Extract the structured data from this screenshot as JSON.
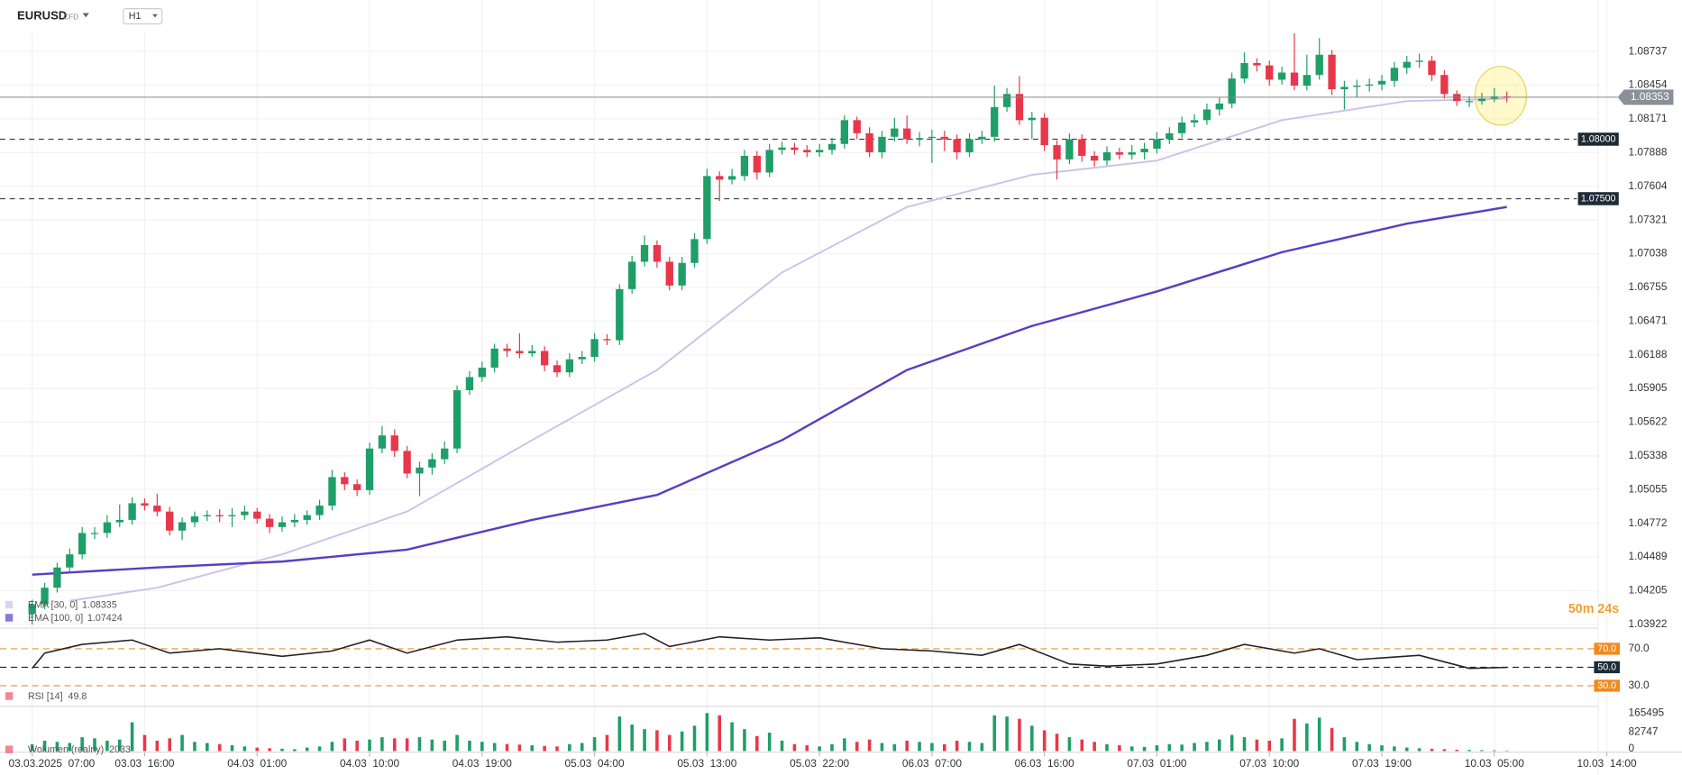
{
  "header": {
    "symbol": "EURUSD",
    "badge": "CFD",
    "timeframe": "H1"
  },
  "chart_data": [
    {
      "type": "candlestick",
      "up_color": "#1f9e68",
      "down_color": "#e8374a",
      "ylim": [
        1.039,
        1.0917
      ],
      "yticks": [
        1.08737,
        1.08454,
        1.08171,
        1.07888,
        1.07604,
        1.07321,
        1.07038,
        1.06755,
        1.06471,
        1.06188,
        1.05905,
        1.05622,
        1.05338,
        1.05055,
        1.04772,
        1.04489,
        1.04205,
        1.03922
      ],
      "xticks": [
        {
          "value": 0,
          "label": "03.03.2025  07:00"
        },
        {
          "value": 9,
          "label": "03.03  16:00"
        },
        {
          "value": 18,
          "label": "04.03  01:00"
        },
        {
          "value": 27,
          "label": "04.03  10:00"
        },
        {
          "value": 36,
          "label": "04.03  19:00"
        },
        {
          "value": 45,
          "label": "05.03  04:00"
        },
        {
          "value": 54,
          "label": "05.03  13:00"
        },
        {
          "value": 63,
          "label": "05.03  22:00"
        },
        {
          "value": 72,
          "label": "06.03  07:00"
        },
        {
          "value": 81,
          "label": "06.03  16:00"
        },
        {
          "value": 90,
          "label": "07.03  01:00"
        },
        {
          "value": 99,
          "label": "07.03  10:00"
        },
        {
          "value": 108,
          "label": "07.03  19:00"
        },
        {
          "value": 117,
          "label": "10.03  05:00"
        },
        {
          "value": 126,
          "label": "10.03  14:00"
        }
      ],
      "open": [
        1.0401,
        1.0409,
        1.0423,
        1.044,
        1.0451,
        1.0469,
        1.0469,
        1.0478,
        1.048,
        1.0494,
        1.0492,
        1.0487,
        1.0471,
        1.0478,
        1.0483,
        1.0484,
        1.0483,
        1.0484,
        1.0487,
        1.0481,
        1.0474,
        1.0478,
        1.048,
        1.0484,
        1.0492,
        1.0516,
        1.051,
        1.0505,
        1.054,
        1.0551,
        1.0538,
        1.0519,
        1.0524,
        1.0531,
        1.054,
        1.0589,
        1.06,
        1.0608,
        1.0624,
        1.0622,
        1.062,
        1.0622,
        1.061,
        1.0604,
        1.0615,
        1.0617,
        1.0632,
        1.0631,
        1.0674,
        1.0697,
        1.0711,
        1.0697,
        1.0677,
        1.0696,
        1.0716,
        1.0769,
        1.0766,
        1.0769,
        1.0786,
        1.0772,
        1.0791,
        1.0793,
        1.0791,
        1.0789,
        1.0791,
        1.0796,
        1.0816,
        1.0805,
        1.0789,
        1.0802,
        1.0809,
        1.08,
        1.0801,
        1.0802,
        1.08,
        1.0789,
        1.08,
        1.0802,
        1.0827,
        1.0838,
        1.0816,
        1.0818,
        1.0795,
        1.0783,
        1.08,
        1.0786,
        1.0782,
        1.0789,
        1.0787,
        1.0789,
        1.0792,
        1.08,
        1.0805,
        1.0814,
        1.0816,
        1.0825,
        1.083,
        1.0851,
        1.0864,
        1.0862,
        1.085,
        1.0856,
        1.0845,
        1.0854,
        1.0871,
        1.0842,
        1.0844,
        1.0845,
        1.0846,
        1.0849,
        1.086,
        1.0865,
        1.0866,
        1.0854,
        1.0838,
        1.0832,
        1.0832,
        1.0834,
        1.0836
      ],
      "high": [
        1.0413,
        1.0427,
        1.0444,
        1.0456,
        1.0474,
        1.0474,
        1.0484,
        1.0493,
        1.0499,
        1.0498,
        1.0502,
        1.0491,
        1.0482,
        1.0487,
        1.0488,
        1.0489,
        1.049,
        1.0492,
        1.049,
        1.0485,
        1.0483,
        1.0485,
        1.0488,
        1.0497,
        1.0522,
        1.052,
        1.0514,
        1.0545,
        1.0559,
        1.0556,
        1.0542,
        1.0529,
        1.0536,
        1.0546,
        1.0593,
        1.0605,
        1.0613,
        1.0628,
        1.0628,
        1.0637,
        1.0627,
        1.0626,
        1.0614,
        1.062,
        1.0622,
        1.0637,
        1.0636,
        1.0678,
        1.0702,
        1.0719,
        1.0715,
        1.0701,
        1.0701,
        1.0721,
        1.0775,
        1.0773,
        1.0775,
        1.0791,
        1.079,
        1.0796,
        1.0798,
        1.0797,
        1.0795,
        1.0796,
        1.0801,
        1.082,
        1.0819,
        1.081,
        1.0807,
        1.0818,
        1.082,
        1.0806,
        1.0808,
        1.0807,
        1.0804,
        1.0805,
        1.0807,
        1.0845,
        1.0843,
        1.0853,
        1.0823,
        1.0822,
        1.0799,
        1.0805,
        1.0804,
        1.079,
        1.0794,
        1.0793,
        1.0795,
        1.0797,
        1.0806,
        1.081,
        1.0819,
        1.0821,
        1.083,
        1.0835,
        1.0856,
        1.0873,
        1.0868,
        1.0866,
        1.0861,
        1.0889,
        1.0871,
        1.0885,
        1.0875,
        1.0849,
        1.085,
        1.0851,
        1.0854,
        1.0865,
        1.087,
        1.0872,
        1.087,
        1.0858,
        1.0841,
        1.0836,
        1.0839,
        1.0843,
        1.084
      ],
      "low": [
        1.0392,
        1.0405,
        1.0419,
        1.0436,
        1.0447,
        1.0464,
        1.0465,
        1.0474,
        1.0476,
        1.0488,
        1.0483,
        1.0467,
        1.0463,
        1.0474,
        1.0479,
        1.0478,
        1.0474,
        1.048,
        1.0477,
        1.0469,
        1.047,
        1.0474,
        1.0476,
        1.048,
        1.0488,
        1.0505,
        1.05,
        1.0501,
        1.0536,
        1.0533,
        1.0515,
        1.05,
        1.0518,
        1.0527,
        1.0536,
        1.0585,
        1.0596,
        1.0604,
        1.0617,
        1.0616,
        1.0617,
        1.0605,
        1.06,
        1.06,
        1.0611,
        1.0613,
        1.0627,
        1.0627,
        1.067,
        1.0693,
        1.0692,
        1.0673,
        1.0673,
        1.0692,
        1.0712,
        1.0748,
        1.0762,
        1.0765,
        1.0766,
        1.0768,
        1.0787,
        1.0787,
        1.0785,
        1.0785,
        1.0787,
        1.0792,
        1.08,
        1.0785,
        1.0784,
        1.0798,
        1.0796,
        1.0794,
        1.078,
        1.079,
        1.0783,
        1.0785,
        1.0796,
        1.0798,
        1.0823,
        1.0812,
        1.08,
        1.079,
        1.0766,
        1.0779,
        1.0781,
        1.0777,
        1.0778,
        1.0783,
        1.0783,
        1.0783,
        1.0788,
        1.0796,
        1.0801,
        1.081,
        1.0812,
        1.082,
        1.0826,
        1.0847,
        1.0857,
        1.0845,
        1.0846,
        1.0841,
        1.0841,
        1.085,
        1.0837,
        1.0825,
        1.0835,
        1.084,
        1.0841,
        1.0844,
        1.0855,
        1.086,
        1.0849,
        1.0834,
        1.0828,
        1.0827,
        1.0829,
        1.0831,
        1.0831
      ],
      "close": [
        1.0409,
        1.0423,
        1.044,
        1.0451,
        1.0469,
        1.0469,
        1.0478,
        1.048,
        1.0494,
        1.0492,
        1.0487,
        1.0471,
        1.0478,
        1.0483,
        1.0484,
        1.0483,
        1.0484,
        1.0487,
        1.0481,
        1.0474,
        1.0478,
        1.048,
        1.0484,
        1.0492,
        1.0516,
        1.051,
        1.0505,
        1.054,
        1.0551,
        1.0538,
        1.0519,
        1.0524,
        1.0531,
        1.054,
        1.0589,
        1.06,
        1.0608,
        1.0624,
        1.0622,
        1.062,
        1.0622,
        1.061,
        1.0604,
        1.0615,
        1.0617,
        1.0632,
        1.0631,
        1.0674,
        1.0697,
        1.0711,
        1.0697,
        1.0677,
        1.0696,
        1.0716,
        1.0769,
        1.0766,
        1.0769,
        1.0786,
        1.0772,
        1.0791,
        1.0793,
        1.0791,
        1.0789,
        1.0791,
        1.0796,
        1.0816,
        1.0805,
        1.0789,
        1.0802,
        1.0809,
        1.08,
        1.0801,
        1.0802,
        1.08,
        1.0789,
        1.08,
        1.0802,
        1.0827,
        1.0838,
        1.0816,
        1.0818,
        1.0795,
        1.0783,
        1.08,
        1.0786,
        1.0782,
        1.0789,
        1.0787,
        1.0789,
        1.0792,
        1.08,
        1.0805,
        1.0814,
        1.0816,
        1.0825,
        1.083,
        1.0851,
        1.0864,
        1.0862,
        1.085,
        1.0856,
        1.0845,
        1.0854,
        1.0871,
        1.0842,
        1.0844,
        1.0845,
        1.0846,
        1.0849,
        1.086,
        1.0865,
        1.0866,
        1.0854,
        1.0838,
        1.0832,
        1.0832,
        1.0834,
        1.0836,
        1.0835
      ],
      "lines": [
        {
          "name": "EMA [30, 0]",
          "value": 1.08335,
          "color": "#c9c3ea",
          "x": [
            3,
            10,
            20,
            30,
            40,
            50,
            60,
            70,
            80,
            90,
            100,
            110,
            118
          ],
          "values": [
            1.0412,
            1.0423,
            1.0451,
            1.0487,
            1.0547,
            1.0606,
            1.0688,
            1.0743,
            1.077,
            1.0782,
            1.0816,
            1.0832,
            1.0834
          ]
        },
        {
          "name": "EMA [100, 0]",
          "value": 1.07424,
          "color": "#5b3cc4",
          "x": [
            0,
            10,
            20,
            30,
            40,
            50,
            60,
            70,
            80,
            90,
            100,
            110,
            118
          ],
          "values": [
            1.0434,
            1.044,
            1.0445,
            1.0455,
            1.048,
            1.0501,
            1.0547,
            1.0606,
            1.0643,
            1.0672,
            1.0705,
            1.0729,
            1.0743
          ]
        }
      ],
      "levels": [
        {
          "value": 1.08,
          "label": "1.08000"
        },
        {
          "value": 1.075,
          "label": "1.07500"
        }
      ],
      "last_price": 1.08353,
      "countdown": "50m 24s"
    },
    {
      "type": "line",
      "title": "RSI [14]",
      "value": 49.8,
      "color": "#222",
      "ylim": [
        8.8,
        91.2
      ],
      "yticks": [
        {
          "value": 70,
          "label": "70.0"
        },
        {
          "value": 50,
          "label": "50.0"
        },
        {
          "value": 30,
          "label": "30.0"
        }
      ],
      "x": [
        0,
        1,
        4,
        8,
        11,
        15,
        20,
        24,
        27,
        30,
        34,
        38,
        42,
        46,
        49,
        51,
        55,
        59,
        63,
        68,
        72,
        76,
        79,
        83,
        86,
        90,
        94,
        97,
        101,
        103,
        106,
        111,
        115,
        118
      ],
      "values": [
        48.8,
        65.3,
        74.7,
        79.4,
        65.3,
        70.0,
        61.8,
        67.6,
        79.4,
        65.3,
        79.4,
        82.9,
        77.1,
        79.4,
        86.5,
        72.4,
        82.9,
        79.4,
        81.8,
        70.0,
        67.6,
        62.9,
        74.7,
        53.5,
        51.2,
        53.5,
        62.9,
        74.7,
        65.3,
        70.0,
        58.2,
        62.9,
        48.8,
        49.8
      ]
    },
    {
      "type": "bar",
      "title": "Wolumen (realny)",
      "value": 2033,
      "ylim": [
        0,
        189000
      ],
      "yticks": [
        165495,
        82747,
        0
      ],
      "values": [
        30000,
        45000,
        40000,
        35000,
        60000,
        55000,
        45000,
        50000,
        125000,
        70000,
        45000,
        55000,
        70000,
        40000,
        35000,
        30000,
        25000,
        20000,
        15000,
        12000,
        10000,
        8000,
        15000,
        20000,
        40000,
        55000,
        45000,
        50000,
        60000,
        55000,
        55000,
        60000,
        50000,
        45000,
        70000,
        45000,
        40000,
        35000,
        30000,
        28000,
        25000,
        22000,
        20000,
        30000,
        35000,
        60000,
        70000,
        150000,
        115000,
        95000,
        90000,
        70000,
        85000,
        110000,
        165000,
        155000,
        125000,
        95000,
        65000,
        80000,
        45000,
        30000,
        25000,
        20000,
        30000,
        55000,
        40000,
        50000,
        35000,
        30000,
        45000,
        40000,
        35000,
        30000,
        45000,
        40000,
        35000,
        155000,
        150000,
        140000,
        110000,
        90000,
        75000,
        60000,
        50000,
        40000,
        30000,
        25000,
        20000,
        18000,
        25000,
        30000,
        28000,
        35000,
        40000,
        50000,
        70000,
        60000,
        50000,
        45000,
        55000,
        140000,
        120000,
        145000,
        100000,
        60000,
        40000,
        30000,
        25000,
        20000,
        15000,
        12000,
        10000,
        8000,
        6000,
        5000,
        4000,
        3000,
        2033
      ]
    }
  ]
}
